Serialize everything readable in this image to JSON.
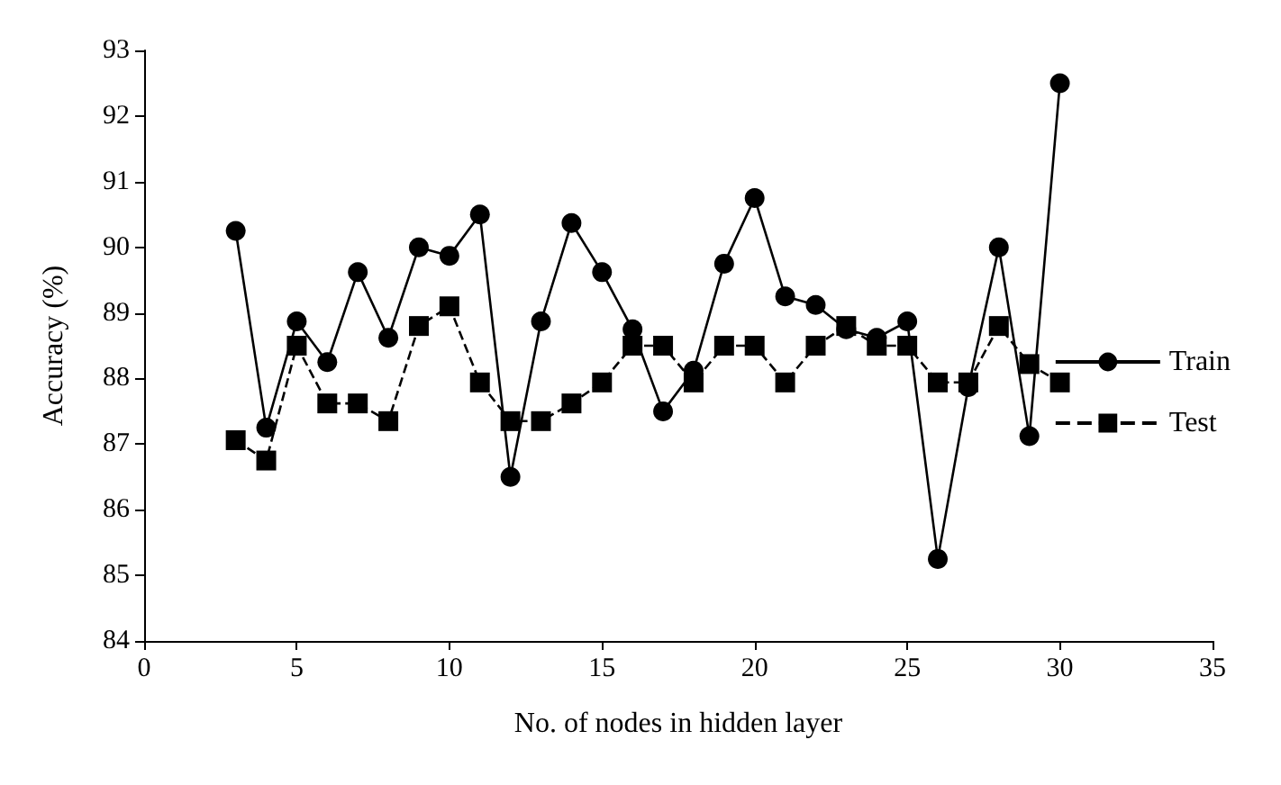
{
  "chart_data": {
    "type": "line",
    "xlabel": "No. of nodes in hidden layer",
    "ylabel": "Accuracy (%)",
    "x": [
      3,
      4,
      5,
      6,
      7,
      8,
      9,
      10,
      11,
      12,
      13,
      14,
      15,
      16,
      17,
      18,
      19,
      20,
      21,
      22,
      23,
      24,
      25,
      26,
      27,
      28,
      29,
      30
    ],
    "series": [
      {
        "name": "Train",
        "color": "#000000",
        "marker": "circle",
        "line_style": "solid",
        "values": [
          90.25,
          87.25,
          88.87,
          88.25,
          89.62,
          88.62,
          90.0,
          89.87,
          90.5,
          86.5,
          88.87,
          90.37,
          89.62,
          88.75,
          87.5,
          88.12,
          89.75,
          90.75,
          89.25,
          89.12,
          88.75,
          88.62,
          88.87,
          85.25,
          87.87,
          90.0,
          87.12,
          92.5
        ]
      },
      {
        "name": "Test",
        "color": "#000000",
        "marker": "square",
        "line_style": "dashed",
        "values": [
          87.06,
          86.75,
          88.5,
          87.62,
          87.62,
          87.35,
          88.8,
          89.1,
          87.94,
          87.35,
          87.35,
          87.62,
          87.94,
          88.5,
          88.5,
          87.94,
          88.5,
          88.5,
          87.94,
          88.5,
          88.8,
          88.5,
          88.5,
          87.94,
          87.94,
          88.8,
          88.22,
          87.94
        ]
      }
    ],
    "xlim": [
      0,
      35
    ],
    "xticks": [
      0,
      5,
      10,
      15,
      20,
      25,
      30,
      35
    ],
    "ylim": [
      84,
      93
    ],
    "yticks": [
      84,
      85,
      86,
      87,
      88,
      89,
      90,
      91,
      92,
      93
    ],
    "grid": false,
    "legend": "right"
  }
}
